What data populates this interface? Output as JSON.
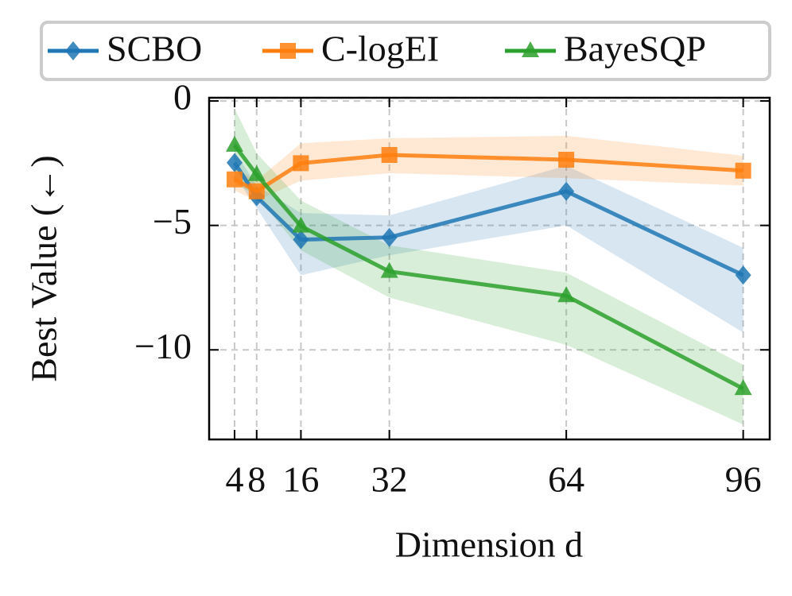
{
  "chart_data": {
    "type": "line",
    "x_label": "Dimension d",
    "y_label": "Best Value (←)",
    "x": [
      4,
      8,
      16,
      32,
      64,
      96
    ],
    "xlim": [
      -0.6,
      100.8
    ],
    "xticks": [
      4,
      8,
      16,
      32,
      64,
      96
    ],
    "ylim": [
      -13.6,
      0.13
    ],
    "yticks": [
      {
        "value": 0,
        "label": "0"
      },
      {
        "value": -5,
        "label": "−5"
      },
      {
        "value": -10,
        "label": "−10"
      }
    ],
    "grid": true,
    "legend": "upper center",
    "series": [
      {
        "name": "SCBO",
        "color": "#1f77b4",
        "marker": "diamond",
        "values": [
          -2.48,
          -3.85,
          -5.57,
          -5.48,
          -3.63,
          -7.0
        ],
        "lower": [
          -3.0,
          -4.3,
          -7.0,
          -6.2,
          -5.0,
          -9.3
        ],
        "upper": [
          -2.0,
          -3.4,
          -4.5,
          -4.6,
          -2.6,
          -5.9
        ]
      },
      {
        "name": "C-logEI",
        "color": "#ff7f0e",
        "marker": "square",
        "values": [
          -3.15,
          -3.63,
          -2.5,
          -2.17,
          -2.36,
          -2.8
        ],
        "lower": [
          -3.6,
          -4.0,
          -3.2,
          -2.9,
          -3.1,
          -3.4
        ],
        "upper": [
          -2.7,
          -3.2,
          -1.7,
          -1.5,
          -1.4,
          -2.2
        ]
      },
      {
        "name": "BayeSQP",
        "color": "#2ca02c",
        "marker": "triangle",
        "values": [
          -1.78,
          -2.96,
          -5.03,
          -6.85,
          -7.83,
          -11.56
        ],
        "lower": [
          -3.3,
          -3.8,
          -6.0,
          -7.9,
          -9.8,
          -13.0
        ],
        "upper": [
          -0.3,
          -2.1,
          -4.0,
          -5.8,
          -6.9,
          -10.6
        ]
      }
    ]
  }
}
